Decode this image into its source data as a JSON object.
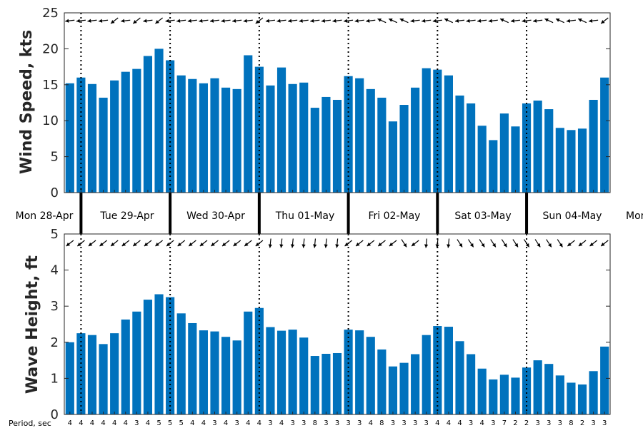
{
  "chart_data": [
    {
      "type": "bar",
      "ylabel": "Wind Speed, kts",
      "ylim": [
        0,
        25
      ],
      "yticks": [
        0,
        5,
        10,
        15,
        20,
        25
      ],
      "color": "#0072BD",
      "values": [
        15.2,
        16.0,
        15.1,
        13.2,
        15.6,
        16.8,
        17.2,
        19.0,
        20.0,
        18.4,
        16.3,
        15.8,
        15.2,
        15.9,
        14.6,
        14.4,
        19.1,
        17.5,
        14.9,
        17.4,
        15.1,
        15.3,
        11.8,
        13.3,
        12.9,
        16.2,
        15.9,
        14.4,
        13.2,
        9.9,
        12.2,
        14.6,
        17.3,
        17.1,
        16.3,
        13.5,
        12.4,
        9.3,
        7.3,
        11.0,
        9.2,
        12.4,
        12.8,
        11.6,
        9.0,
        8.7,
        8.9,
        12.9,
        16.0
      ],
      "wind_direction_icons": [
        "arrow-left-icon",
        "arrow-left-icon",
        "arrow-left-icon",
        "arrow-left-icon",
        "arrow-down-left-icon",
        "arrow-left-icon",
        "arrow-down-left-icon",
        "arrow-left-icon",
        "arrow-down-left-icon",
        "arrow-left-icon",
        "arrow-left-icon",
        "arrow-left-icon",
        "arrow-left-icon",
        "arrow-left-icon",
        "arrow-left-icon",
        "arrow-left-icon",
        "arrow-left-icon",
        "arrow-down-left-icon",
        "arrow-left-icon",
        "arrow-left-icon",
        "arrow-left-icon",
        "arrow-left-icon",
        "arrow-left-icon",
        "arrow-left-icon",
        "arrow-left-icon",
        "arrow-left-icon",
        "arrow-left-icon",
        "arrow-left-icon",
        "arrow-up-left-icon",
        "arrow-up-left-icon",
        "arrow-up-left-icon",
        "arrow-left-icon",
        "arrow-left-icon",
        "arrow-left-icon",
        "arrow-up-left-icon",
        "arrow-left-icon",
        "arrow-left-icon",
        "arrow-left-icon",
        "arrow-left-icon",
        "arrow-up-left-icon",
        "arrow-left-icon",
        "arrow-left-icon",
        "arrow-left-icon",
        "arrow-up-left-icon",
        "arrow-up-left-icon",
        "arrow-left-icon",
        "arrow-up-left-icon",
        "arrow-left-icon",
        "arrow-down-left-icon"
      ]
    },
    {
      "type": "bar",
      "ylabel": "Wave Height, ft",
      "ylim": [
        0,
        5
      ],
      "yticks": [
        0,
        1,
        2,
        3,
        4,
        5
      ],
      "color": "#0072BD",
      "values": [
        2.0,
        2.25,
        2.2,
        1.95,
        2.25,
        2.63,
        2.85,
        3.18,
        3.33,
        3.25,
        2.8,
        2.53,
        2.33,
        2.3,
        2.15,
        2.05,
        2.85,
        2.95,
        2.42,
        2.32,
        2.35,
        2.13,
        1.62,
        1.68,
        1.7,
        2.35,
        2.33,
        2.15,
        1.8,
        1.33,
        1.43,
        1.67,
        2.2,
        2.45,
        2.43,
        2.03,
        1.67,
        1.27,
        0.97,
        1.1,
        1.02,
        1.3,
        1.5,
        1.4,
        1.08,
        0.88,
        0.83,
        1.2,
        1.88
      ],
      "wave_direction_icons": [
        "arrow-down-left-icon",
        "arrow-down-left-icon",
        "arrow-down-left-icon",
        "arrow-down-left-icon",
        "arrow-down-left-icon",
        "arrow-down-left-icon",
        "arrow-down-left-icon",
        "arrow-down-left-icon",
        "arrow-down-left-icon",
        "arrow-down-left-icon",
        "arrow-down-left-icon",
        "arrow-down-left-icon",
        "arrow-down-left-icon",
        "arrow-down-left-icon",
        "arrow-down-left-icon",
        "arrow-down-left-icon",
        "arrow-down-left-icon",
        "arrow-down-left-icon",
        "arrow-down-icon",
        "arrow-down-icon",
        "arrow-down-icon",
        "arrow-down-icon",
        "arrow-down-icon",
        "arrow-down-icon",
        "arrow-down-icon",
        "arrow-down-left-icon",
        "arrow-down-left-icon",
        "arrow-down-left-icon",
        "arrow-down-left-icon",
        "arrow-down-left-icon",
        "arrow-down-right-icon",
        "arrow-down-left-icon",
        "arrow-down-icon",
        "arrow-down-icon",
        "arrow-down-icon",
        "arrow-down-right-icon",
        "arrow-down-right-icon",
        "arrow-down-right-icon",
        "arrow-down-right-icon",
        "arrow-down-right-icon",
        "arrow-down-right-icon",
        "arrow-down-right-icon",
        "arrow-down-right-icon",
        "arrow-down-right-icon",
        "arrow-down-right-icon",
        "arrow-down-left-icon",
        "arrow-down-left-icon",
        "arrow-down-left-icon",
        "arrow-down-left-icon"
      ]
    }
  ],
  "days": [
    "Mon 28-Apr",
    "Tue 29-Apr",
    "Wed 30-Apr",
    "Thu 01-May",
    "Fri 02-May",
    "Sat 03-May",
    "Sun 04-May",
    "Mon"
  ],
  "day_boundary_bar_index": [
    1,
    9,
    17,
    25,
    33,
    41
  ],
  "period_label": "Period, sec",
  "periods": [
    "4",
    "4",
    "4",
    "4",
    "4",
    "4",
    "3",
    "4",
    "5",
    "5",
    "5",
    "4",
    "4",
    "3",
    "4",
    "3",
    "4",
    "4",
    "3",
    "4",
    "3",
    "3",
    "8",
    "3",
    "3",
    "3",
    "3",
    "4",
    "8",
    "3",
    "3",
    "3",
    "3",
    "4",
    "4",
    "4",
    "3",
    "4",
    "3",
    "7",
    "2",
    "2",
    "3",
    "3",
    "3",
    "8",
    "2",
    "3",
    "3"
  ]
}
